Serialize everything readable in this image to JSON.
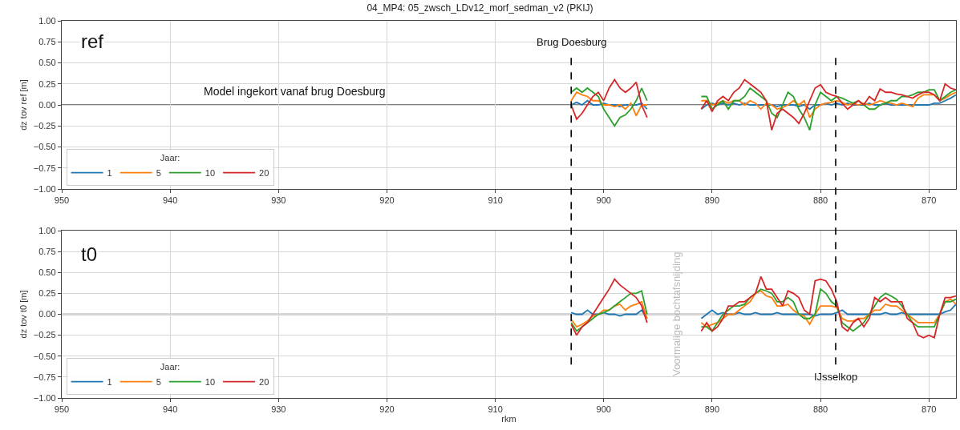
{
  "chart_data": [
    {
      "type": "line",
      "title": "04_MP4: 05_zwsch_LDv12_morf_sedman_v2 (PKIJ)",
      "ylabel": "dz tov ref [m]",
      "legend_title": "Jaar:",
      "legend": "bottom left",
      "grid": true,
      "annotations": [
        "ref",
        "Model ingekort vanaf brug Doesburg"
      ],
      "xlim": [
        950,
        867.5
      ],
      "xticks": [
        950,
        940,
        930,
        920,
        910,
        900,
        890,
        880,
        870
      ],
      "ylim": [
        -1,
        1
      ],
      "yticks": [
        {
          "value": 1,
          "label": "1.00"
        },
        {
          "value": 0.75,
          "label": "0.75"
        },
        {
          "value": 0.5,
          "label": "0.50"
        },
        {
          "value": 0.25,
          "label": "0.25"
        },
        {
          "value": 0,
          "label": "0.00"
        },
        {
          "value": -0.25,
          "label": "−0.25"
        },
        {
          "value": -0.5,
          "label": "−0.50"
        },
        {
          "value": -0.75,
          "label": "−0.75"
        },
        {
          "value": -1,
          "label": "−1.00"
        }
      ],
      "ref_lines": [
        {
          "axis": "y",
          "value": 0,
          "color": "#555555",
          "line_style": "solid"
        },
        {
          "axis": "x",
          "value": 903,
          "label": "Brug Doesburg",
          "color": "#000000",
          "line_style": "dashed"
        },
        {
          "axis": "x",
          "value": 878.6,
          "color": "#000000",
          "line_style": "dashed"
        }
      ],
      "x": [
        903,
        902.5,
        902,
        901.5,
        901,
        900.5,
        900,
        899.5,
        899,
        898.5,
        898,
        897.5,
        897,
        896.5,
        896,
        893.5,
        891,
        890.5,
        890,
        889.5,
        889,
        888.5,
        888,
        887.5,
        887,
        886.5,
        886,
        885.5,
        885,
        884.5,
        884,
        883.5,
        883,
        882.5,
        882,
        881.5,
        881,
        880.5,
        880,
        879.5,
        879,
        878.5,
        878,
        877.5,
        877,
        876.5,
        876,
        875.5,
        875,
        874.5,
        874,
        873.5,
        873,
        872.5,
        872,
        871.5,
        871,
        870.5,
        870,
        869.5,
        869,
        868.5,
        868,
        867.5
      ],
      "series": [
        {
          "name": "1",
          "color": "#1f77b4",
          "values": [
            0,
            0.03,
            0,
            0.05,
            0,
            0,
            0.02,
            0,
            0,
            -0.02,
            0,
            0,
            0,
            0.02,
            -0.05,
            null,
            -0.05,
            0,
            0.02,
            0,
            0.02,
            0,
            0.02,
            0,
            0.02,
            0,
            0,
            0,
            0,
            0,
            -0.02,
            0,
            0,
            0,
            -0.02,
            0,
            -0.05,
            0,
            0,
            0.02,
            0,
            0.02,
            0,
            0.02,
            0,
            0,
            0,
            0.02,
            0,
            0,
            0.02,
            0,
            0,
            0,
            0,
            0,
            0,
            0,
            0,
            0.02,
            0.02,
            0.05,
            0.08,
            0.12
          ]
        },
        {
          "name": "5",
          "color": "#ff7f0e",
          "values": [
            0.05,
            0.15,
            0.12,
            0.1,
            0.05,
            0.05,
            0,
            0,
            -0.02,
            0,
            -0.05,
            0.02,
            -0.13,
            0,
            0,
            null,
            0.05,
            0.05,
            0,
            0.02,
            0.05,
            0.02,
            0.05,
            0.05,
            0,
            0.05,
            0.02,
            -0.05,
            0.02,
            0,
            -0.05,
            -0.03,
            0,
            0.05,
            0,
            0.05,
            -0.15,
            -0.05,
            0,
            0.02,
            0.03,
            0.05,
            0.03,
            0,
            0.02,
            0,
            0.02,
            0,
            0.02,
            0.05,
            0.03,
            0.02,
            0,
            0.02,
            0,
            -0.02,
            0.08,
            0.12,
            0.12,
            0.12,
            0.05,
            0.08,
            0.12,
            0.15
          ]
        },
        {
          "name": "10",
          "color": "#2ca02c",
          "values": [
            0.15,
            0.2,
            0.15,
            0.2,
            0.15,
            0.1,
            -0.05,
            -0.15,
            -0.25,
            -0.15,
            -0.12,
            -0.05,
            0.05,
            0.2,
            0.05,
            null,
            0.1,
            0.1,
            -0.05,
            0,
            0.05,
            -0.05,
            0.05,
            0.05,
            0.1,
            0.2,
            0.15,
            0.1,
            0.05,
            -0.1,
            -0.15,
            0,
            0.15,
            0.1,
            -0.05,
            -0.15,
            -0.3,
            0,
            0.15,
            0.1,
            0.05,
            0.1,
            0.08,
            0.05,
            0.02,
            0.05,
            0,
            -0.05,
            -0.05,
            0,
            0.02,
            0.05,
            0.05,
            0.1,
            0.1,
            0.12,
            0.15,
            0.15,
            0.18,
            0.18,
            0.05,
            0.1,
            0.15,
            0.18
          ]
        },
        {
          "name": "20",
          "color": "#d62728",
          "values": [
            0,
            -0.17,
            -0.1,
            0,
            0.1,
            0.15,
            0.05,
            0.2,
            0.3,
            0.2,
            0.15,
            0.2,
            0.27,
            0,
            -0.15,
            null,
            -0.05,
            0.05,
            -0.08,
            0.05,
            0.1,
            0.05,
            0.15,
            0.2,
            0.3,
            0.25,
            0.2,
            0.15,
            0.05,
            -0.3,
            -0.1,
            -0.05,
            -0.1,
            -0.15,
            -0.22,
            -0.1,
            0.05,
            0.2,
            0.24,
            0.15,
            0.12,
            0.1,
            0.02,
            -0.05,
            0,
            0.05,
            0,
            0.1,
            0.05,
            0.19,
            0.15,
            0.15,
            0.13,
            0.12,
            0.1,
            0.08,
            0.12,
            0.15,
            0.15,
            0.12,
            0.05,
            0.25,
            0.2,
            0.18
          ]
        }
      ]
    },
    {
      "type": "line",
      "xlabel": "rkm",
      "ylabel": "dz tov t0 [m]",
      "legend_title": "Jaar:",
      "legend": "bottom left",
      "grid": true,
      "annotations": [
        "t0",
        {
          "text": "Voormalige bochtafsnijding",
          "x": 893.3,
          "y": 0
        }
      ],
      "xlim": [
        950,
        867.5
      ],
      "xticks": [
        950,
        940,
        930,
        920,
        910,
        900,
        890,
        880,
        870
      ],
      "ylim": [
        -1,
        1
      ],
      "yticks": [
        {
          "value": 1,
          "label": "1.00"
        },
        {
          "value": 0.75,
          "label": "0.75"
        },
        {
          "value": 0.5,
          "label": "0.50"
        },
        {
          "value": 0.25,
          "label": "0.25"
        },
        {
          "value": 0,
          "label": "0.00"
        },
        {
          "value": -0.25,
          "label": "−0.25"
        },
        {
          "value": -0.5,
          "label": "−0.50"
        },
        {
          "value": -0.75,
          "label": "−0.75"
        },
        {
          "value": -1,
          "label": "−1.00"
        }
      ],
      "ref_lines": [
        {
          "axis": "y",
          "value": 0,
          "color": "#555555",
          "line_style": "solid"
        },
        {
          "axis": "x",
          "value": 903,
          "color": "#000000",
          "line_style": "dashed"
        },
        {
          "axis": "x",
          "value": 878.6,
          "label": "IJsselkop",
          "color": "#000000",
          "line_style": "dashed"
        }
      ],
      "x": [
        903,
        902.5,
        902,
        901.5,
        901,
        900.5,
        900,
        899.5,
        899,
        898.5,
        898,
        897.5,
        897,
        896.5,
        896,
        893.5,
        891,
        890.5,
        890,
        889.5,
        889,
        888.5,
        888,
        887.5,
        887,
        886.5,
        886,
        885.5,
        885,
        884.5,
        884,
        883.5,
        883,
        882.5,
        882,
        881.5,
        881,
        880.5,
        880,
        879.5,
        879,
        878.5,
        878,
        877.5,
        877,
        876.5,
        876,
        875.5,
        875,
        874.5,
        874,
        873.5,
        873,
        872.5,
        872,
        871.5,
        871,
        870.5,
        870,
        869.5,
        869,
        868.5,
        868,
        867.5
      ],
      "series": [
        {
          "name": "1",
          "color": "#1f77b4",
          "values": [
            0.02,
            0,
            0,
            0.05,
            0,
            0,
            0.02,
            0,
            0,
            -0.02,
            0,
            0,
            0,
            0.05,
            -0.05,
            null,
            -0.05,
            0,
            0.05,
            0,
            0.02,
            0,
            0,
            0.02,
            0,
            0,
            0.02,
            0,
            0,
            0,
            0.02,
            0,
            0,
            0,
            0,
            0,
            0,
            -0.02,
            0,
            0,
            0,
            0.02,
            0.05,
            0,
            0,
            0,
            0,
            0,
            0,
            0,
            0.02,
            0,
            0,
            0.02,
            0,
            0,
            0,
            0,
            0,
            0,
            0,
            0.03,
            0.05,
            0.12
          ]
        },
        {
          "name": "5",
          "color": "#ff7f0e",
          "values": [
            -0.06,
            -0.15,
            -0.12,
            -0.08,
            -0.02,
            0,
            0.05,
            0.05,
            0.1,
            0.12,
            0.05,
            0.1,
            0.12,
            0.15,
            -0.05,
            null,
            -0.1,
            -0.15,
            -0.12,
            -0.1,
            -0.05,
            0,
            0,
            0.05,
            0.1,
            0.15,
            0.25,
            0.28,
            0.22,
            0.2,
            0.1,
            0.1,
            0.12,
            0.05,
            0,
            -0.02,
            -0.12,
            0,
            0.1,
            0.1,
            0.1,
            0.08,
            -0.05,
            -0.08,
            -0.08,
            -0.05,
            -0.05,
            0,
            0.05,
            0.05,
            0.12,
            0.1,
            0.1,
            0.05,
            0,
            -0.05,
            -0.1,
            -0.1,
            -0.1,
            -0.1,
            0,
            0.15,
            0.18,
            0.12
          ]
        },
        {
          "name": "10",
          "color": "#2ca02c",
          "values": [
            -0.1,
            -0.2,
            -0.15,
            -0.1,
            -0.05,
            0,
            0.02,
            0.05,
            0.1,
            0.15,
            0.2,
            0.25,
            0.25,
            0.28,
            0,
            null,
            -0.15,
            -0.15,
            -0.2,
            -0.1,
            0,
            0.05,
            0.1,
            0.1,
            0.12,
            0.2,
            0.25,
            0.3,
            0.28,
            0.25,
            0.15,
            0.15,
            0.2,
            0.15,
            0,
            -0.05,
            -0.05,
            0,
            0.3,
            0.25,
            0.15,
            0.1,
            -0.1,
            -0.15,
            -0.2,
            -0.15,
            -0.1,
            0,
            0.1,
            0.2,
            0.25,
            0.22,
            0.18,
            0.1,
            0,
            -0.1,
            -0.15,
            -0.15,
            -0.15,
            -0.15,
            0,
            0.15,
            0.15,
            0.18
          ]
        },
        {
          "name": "20",
          "color": "#d62728",
          "values": [
            -0.12,
            -0.25,
            -0.15,
            -0.1,
            0,
            0.1,
            0.2,
            0.3,
            0.42,
            0.35,
            0.3,
            0.25,
            0.2,
            0.1,
            -0.1,
            null,
            -0.2,
            -0.1,
            -0.2,
            -0.15,
            -0.05,
            0.1,
            0.1,
            0.15,
            0.15,
            0.2,
            0.25,
            0.45,
            0.3,
            0.3,
            0.2,
            0.1,
            0.28,
            0.25,
            0.2,
            0.05,
            0,
            0.4,
            0.42,
            0.4,
            0.3,
            0.15,
            -0.15,
            -0.2,
            -0.1,
            -0.05,
            -0.15,
            -0.05,
            0.2,
            0.15,
            0.2,
            0.15,
            0.15,
            0.15,
            -0.05,
            -0.1,
            -0.25,
            -0.28,
            -0.25,
            -0.28,
            0,
            0.2,
            0.2,
            0.22
          ]
        }
      ]
    }
  ]
}
